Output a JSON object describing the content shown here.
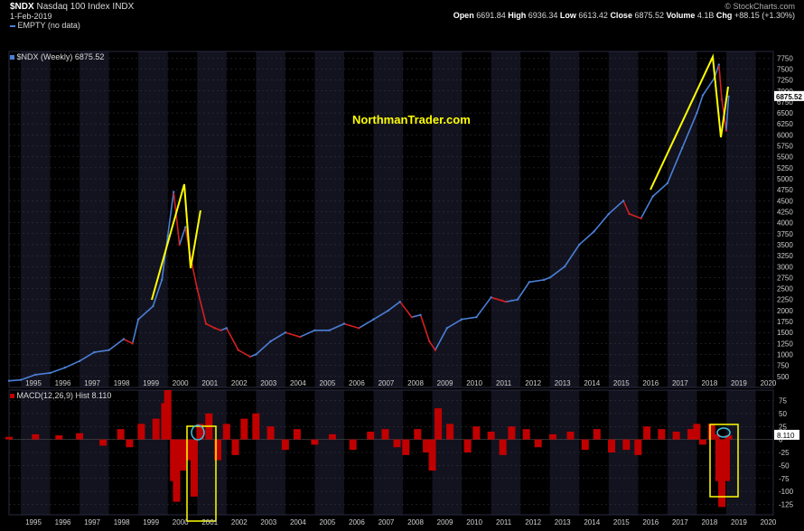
{
  "header": {
    "symbol": "$NDX",
    "name": "Nasdaq 100 Index",
    "exchange": "INDX",
    "date": "1-Feb-2019",
    "credit": "© StockCharts.com",
    "ohlc": {
      "open_label": "Open",
      "open": "6691.84",
      "high_label": "High",
      "high": "6936.34",
      "low_label": "Low",
      "low": "6613.42",
      "close_label": "Close",
      "close": "6875.52",
      "volume_label": "Volume",
      "volume": "4.1B",
      "chg_label": "Chg",
      "chg": "+88.15 (+1.30%)"
    }
  },
  "legend": {
    "empty": "EMPTY (no data)",
    "price": "$NDX (Weekly) 6875.52",
    "macd": "MACD(12,26,9) Hist 8.110"
  },
  "watermark": "NorthmanTrader.com",
  "colors": {
    "background": "#000000",
    "band": "#13131f",
    "grid": "#3a3a4a",
    "up": "#4a7fd6",
    "down": "#d42020",
    "macd": "#c00000",
    "annotation": "#ffff00",
    "circle": "#40c0e0",
    "close_tag": "#ffffff"
  },
  "chart_data": [
    {
      "type": "line",
      "title": "$NDX (Weekly) 6875.52",
      "x_ticks": [
        "1995",
        "1996",
        "1997",
        "1998",
        "1999",
        "2000",
        "2001",
        "2002",
        "2003",
        "2004",
        "2005",
        "2006",
        "2007",
        "2008",
        "2009",
        "2010",
        "2011",
        "2012",
        "2013",
        "2014",
        "2015",
        "2016",
        "2017",
        "2018",
        "2019",
        "2020"
      ],
      "y_ticks": [
        "500",
        "750",
        "1000",
        "1250",
        "1500",
        "1750",
        "2000",
        "2250",
        "2500",
        "2750",
        "3000",
        "3250",
        "3500",
        "3750",
        "4000",
        "4250",
        "4500",
        "4750",
        "5000",
        "5250",
        "5500",
        "5750",
        "6000",
        "6250",
        "6500",
        "6750",
        "7000",
        "7250",
        "7500",
        "7750"
      ],
      "ylim": [
        250,
        7900
      ],
      "last_value": "6875.52",
      "grid": true,
      "series": [
        {
          "x": [
            1994.6,
            1995.0,
            1995.5,
            1996.0,
            1996.5,
            1997.0,
            1997.5,
            1998.0,
            1998.5,
            1998.8,
            1999.0,
            1999.5,
            1999.8,
            2000.0,
            2000.2,
            2000.4,
            2000.6,
            2000.75,
            2001.0,
            2001.3,
            2001.6,
            2001.8,
            2002.0,
            2002.4,
            2002.8,
            2003.0,
            2003.5,
            2004.0,
            2004.5,
            2005.0,
            2005.5,
            2006.0,
            2006.5,
            2007.0,
            2007.5,
            2007.9,
            2008.3,
            2008.6,
            2008.9,
            2009.1,
            2009.5,
            2010.0,
            2010.5,
            2011.0,
            2011.5,
            2011.9,
            2012.3,
            2012.8,
            2013.0,
            2013.5,
            2014.0,
            2014.5,
            2015.0,
            2015.5,
            2015.7,
            2016.1,
            2016.5,
            2017.0,
            2017.5,
            2018.0,
            2018.2,
            2018.6,
            2018.75,
            2018.85,
            2019.0,
            2019.08
          ],
          "values": [
            400,
            420,
            540,
            580,
            700,
            850,
            1050,
            1100,
            1350,
            1250,
            1800,
            2100,
            2700,
            3700,
            4700,
            3500,
            3900,
            3300,
            2500,
            1700,
            1600,
            1550,
            1600,
            1100,
            950,
            1000,
            1300,
            1500,
            1400,
            1550,
            1550,
            1700,
            1600,
            1800,
            2000,
            2200,
            1850,
            1900,
            1300,
            1100,
            1600,
            1800,
            1850,
            2300,
            2200,
            2250,
            2650,
            2700,
            2750,
            3000,
            3500,
            3800,
            4200,
            4500,
            4200,
            4100,
            4600,
            4900,
            5700,
            6500,
            6900,
            7300,
            7600,
            6800,
            6100,
            6875
          ]
        }
      ]
    },
    {
      "type": "bar",
      "title": "MACD(12,26,9) Hist 8.110",
      "x_ticks": [
        "1995",
        "1996",
        "1997",
        "1998",
        "1999",
        "2000",
        "2001",
        "2002",
        "2003",
        "2004",
        "2005",
        "2006",
        "2007",
        "2008",
        "2009",
        "2010",
        "2011",
        "2012",
        "2013",
        "2014",
        "2015",
        "2016",
        "2017",
        "2018",
        "2019",
        "2020"
      ],
      "y_ticks": [
        "75",
        "50",
        "25",
        "0",
        "-25",
        "-50",
        "-75",
        "-100",
        "-125"
      ],
      "ylim": [
        -145,
        95
      ],
      "last_value": "8.110",
      "x": [
        1994.6,
        1995.5,
        1996.3,
        1997.0,
        1997.8,
        1998.4,
        1998.7,
        1999.1,
        1999.6,
        1999.9,
        2000.0,
        2000.2,
        2000.3,
        2000.5,
        2000.7,
        2000.9,
        2001.1,
        2001.4,
        2001.7,
        2002.0,
        2002.3,
        2002.6,
        2003.0,
        2003.5,
        2004.0,
        2004.4,
        2005.0,
        2005.6,
        2006.3,
        2006.9,
        2007.4,
        2007.8,
        2008.1,
        2008.5,
        2008.8,
        2009.0,
        2009.2,
        2009.6,
        2010.2,
        2010.5,
        2011.0,
        2011.4,
        2011.7,
        2012.2,
        2012.6,
        2013.1,
        2013.7,
        2014.2,
        2014.6,
        2015.1,
        2015.6,
        2016.0,
        2016.3,
        2016.8,
        2017.3,
        2017.8,
        2018.0,
        2018.2,
        2018.5,
        2018.65,
        2018.75,
        2018.85,
        2019.0,
        2019.08
      ],
      "values": [
        5,
        10,
        8,
        12,
        -12,
        20,
        -15,
        30,
        40,
        70,
        95,
        -80,
        -120,
        -60,
        -40,
        -110,
        30,
        50,
        -40,
        30,
        -30,
        40,
        50,
        25,
        -20,
        20,
        -10,
        10,
        -20,
        15,
        20,
        -15,
        -30,
        20,
        -25,
        -60,
        60,
        30,
        -25,
        25,
        15,
        -30,
        25,
        20,
        -15,
        10,
        15,
        -20,
        20,
        -25,
        -20,
        -30,
        25,
        20,
        15,
        20,
        30,
        -10,
        30,
        10,
        -80,
        -130,
        -80,
        8
      ]
    }
  ]
}
